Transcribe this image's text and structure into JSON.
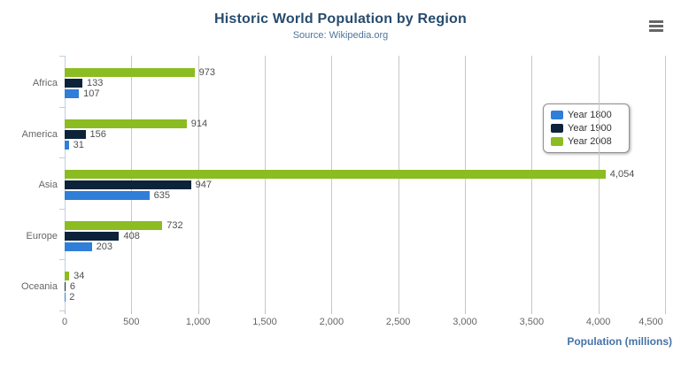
{
  "chart_data": {
    "type": "bar",
    "orientation": "horizontal",
    "title": "Historic World Population by Region",
    "subtitle": "Source: Wikipedia.org",
    "xlabel": "Population (millions)",
    "categories": [
      "Africa",
      "America",
      "Asia",
      "Europe",
      "Oceania"
    ],
    "series": [
      {
        "name": "Year 1800",
        "color": "#2f7ed8",
        "values": [
          107,
          31,
          635,
          203,
          2
        ]
      },
      {
        "name": "Year 1900",
        "color": "#0d233a",
        "values": [
          133,
          156,
          947,
          408,
          6
        ]
      },
      {
        "name": "Year 2008",
        "color": "#8bbc21",
        "values": [
          973,
          914,
          4054,
          732,
          34
        ]
      }
    ],
    "bar_order_top_to_bottom": [
      "Year 2008",
      "Year 1900",
      "Year 1800"
    ],
    "xlim": [
      0,
      4500
    ],
    "x_tick_values": [
      0,
      500,
      1000,
      1500,
      2000,
      2500,
      3000,
      3500,
      4000,
      4500
    ],
    "x_tick_labels": [
      "0",
      "500",
      "1,000",
      "1,500",
      "2,000",
      "2,500",
      "3,000",
      "3,500",
      "4,000",
      "4,500"
    ],
    "grid": "vertical-only",
    "legend_position": "right-middle",
    "value_labels_visible": true
  },
  "menu": {
    "icon": "hamburger-menu-icon"
  },
  "colors": {
    "title": "#274b6d",
    "subtitle": "#4d759e",
    "axis_title": "#4572a7",
    "axis_labels": "#666666",
    "data_labels": "#4f4f4f",
    "gridline": "#c8c8c8",
    "axis_line": "#c0d0e0",
    "legend_border": "#909090",
    "legend_text": "#333333",
    "menu_icon": "#666666"
  }
}
